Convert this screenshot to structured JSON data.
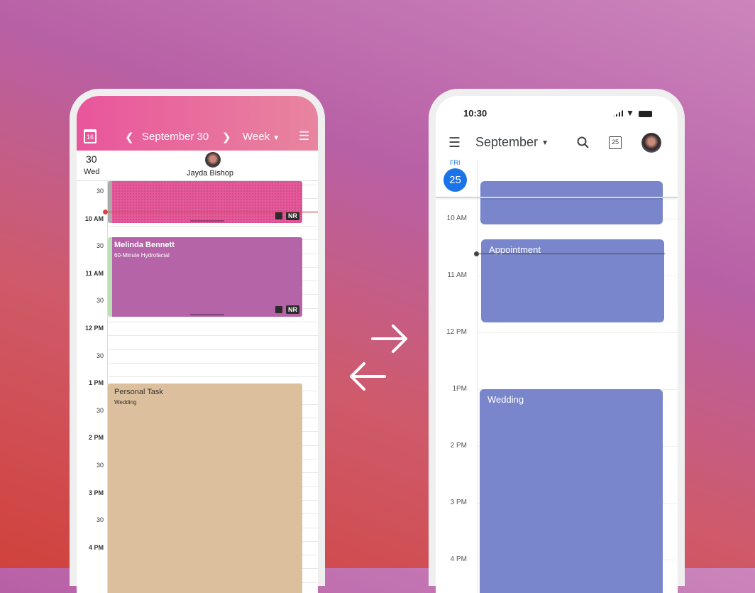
{
  "left_app": {
    "header": {
      "calendar_icon_day": "16",
      "date": "September 30",
      "view": "Week"
    },
    "day": {
      "number": "30",
      "weekday": "Wed"
    },
    "staff": {
      "name": "Jayda Bishop"
    },
    "time_labels": [
      "30",
      "10 AM",
      "30",
      "11 AM",
      "30",
      "12 PM",
      "30",
      "1 PM",
      "30",
      "2 PM",
      "30",
      "3 PM",
      "30",
      "4 PM"
    ],
    "events": [
      {
        "title": "",
        "subtitle": "",
        "badge": "NR",
        "color": "#e6589a"
      },
      {
        "title": "Melinda Bennett",
        "subtitle": "60-Minute Hydrofacial",
        "badge": "NR",
        "color": "#b565a7"
      },
      {
        "title": "Personal Task",
        "subtitle": "Wedding",
        "color": "#dcbf9c"
      }
    ]
  },
  "right_app": {
    "status": {
      "time": "10:30"
    },
    "toolbar": {
      "month": "September",
      "today_icon_day": "25"
    },
    "day": {
      "weekday": "FRI",
      "number": "25"
    },
    "time_labels": [
      "10 AM",
      "11 AM",
      "12 PM",
      "1PM",
      "2 PM",
      "3 PM",
      "4 PM"
    ],
    "events": [
      {
        "title": ""
      },
      {
        "title": "Appointment"
      },
      {
        "title": "Wedding"
      }
    ],
    "event_color": "#7986cb",
    "accent": "#1a73e8"
  }
}
